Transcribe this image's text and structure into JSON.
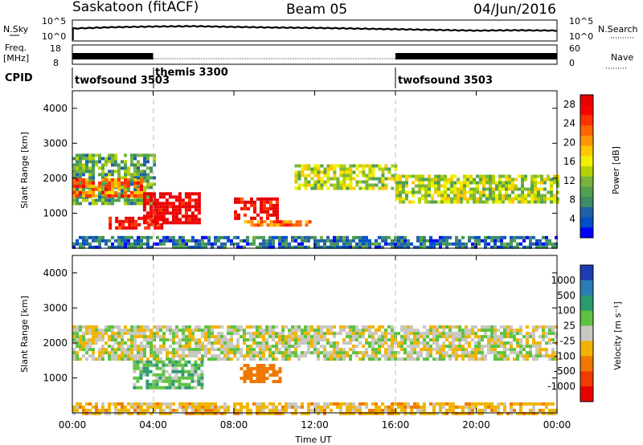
{
  "header": {
    "station": "Saskatoon (fitACF)",
    "beam": "Beam 05",
    "date": "04/Jun/2016"
  },
  "panels": {
    "nsky_label": "N.Sky",
    "nsky_ticks": [
      "10^5",
      "10^0"
    ],
    "nsearch_label": "N.Search",
    "nsearch_ticks": [
      "10^5",
      "10^0"
    ],
    "freq_label_line1": "Freq.",
    "freq_label_line2": "[MHz]",
    "freq_ticks": [
      "18",
      "8"
    ],
    "nave_label": "Nave",
    "nave_ticks": [
      "60",
      "0"
    ],
    "cpid_label": "CPID",
    "cpid_segments": [
      {
        "name": "twofsound 3503",
        "start_hour": 0,
        "end_hour": 4
      },
      {
        "name": "themis 3300",
        "start_hour": 4,
        "end_hour": 16
      },
      {
        "name": "twofsound 3503",
        "start_hour": 16,
        "end_hour": 24
      }
    ]
  },
  "axes": {
    "xlabel": "Time UT",
    "x_ticks": [
      "00:00",
      "04:00",
      "08:00",
      "12:00",
      "16:00",
      "20:00",
      "00:00"
    ],
    "ylabel": "Slant Range [km]",
    "y_ticks": [
      "1000",
      "2000",
      "3000",
      "4000"
    ]
  },
  "colorbars": {
    "power": {
      "label": "Power [dB]",
      "ticks": [
        "4",
        "8",
        "12",
        "16",
        "20",
        "24",
        "28"
      ],
      "colors": [
        "#0000ff",
        "#0050c8",
        "#2060a8",
        "#3c8c64",
        "#50a050",
        "#78b43c",
        "#b4d200",
        "#f0f000",
        "#ffc800",
        "#ff9600",
        "#ff6400",
        "#ff3200",
        "#ff0000",
        "#e60000"
      ]
    },
    "velocity": {
      "label": "Velocity [m s⁻¹]",
      "ticks": [
        "1000",
        "500",
        "100",
        "25",
        "-25",
        "-100",
        "-500",
        "-1000"
      ],
      "colors": [
        "#1c3cb4",
        "#2b7bb4",
        "#2b9a6e",
        "#5fc142",
        "#c8c8c0",
        "#f0b400",
        "#f07800",
        "#f03c00",
        "#e60000"
      ]
    }
  },
  "chart_data": [
    {
      "type": "line",
      "name": "N.Sky / N.Search",
      "x": [
        0,
        2,
        4,
        6,
        8,
        10,
        12,
        14,
        16,
        18,
        20,
        22,
        24
      ],
      "y_log": [
        3.2,
        3.6,
        3.8,
        3.9,
        3.7,
        3.5,
        3.4,
        3.2,
        3.0,
        2.8,
        2.6,
        2.7,
        2.6
      ],
      "ylim": [
        "10^0",
        "10^5"
      ]
    },
    {
      "type": "line",
      "name": "Freq / Nave",
      "x": [
        0,
        4,
        4,
        16,
        16,
        24
      ],
      "freq_mhz": [
        10.5,
        10.5,
        10.5,
        10.5,
        10.5,
        10.5
      ],
      "ylim_freq": [
        8,
        18
      ],
      "ylim_nave": [
        0,
        60
      ]
    },
    {
      "type": "heatmap",
      "name": "Power",
      "xlim": [
        0,
        24
      ],
      "ylim": [
        0,
        4500
      ],
      "zlim": [
        0,
        30
      ],
      "bands": [
        {
          "x0": 0,
          "x1": 4,
          "y0": 1300,
          "y1": 2700,
          "z": 10
        },
        {
          "x0": 0,
          "x1": 3.5,
          "y0": 1500,
          "y1": 2000,
          "z": 22
        },
        {
          "x0": 1.8,
          "x1": 4.5,
          "y0": 600,
          "y1": 900,
          "z": 28
        },
        {
          "x0": 3.5,
          "x1": 6.3,
          "y0": 750,
          "y1": 1600,
          "z": 30
        },
        {
          "x0": 8.0,
          "x1": 10.2,
          "y0": 850,
          "y1": 1450,
          "z": 28
        },
        {
          "x0": 8.5,
          "x1": 11.7,
          "y0": 650,
          "y1": 800,
          "z": 22
        },
        {
          "x0": 11.0,
          "x1": 16.0,
          "y0": 1700,
          "y1": 2400,
          "z": 14
        },
        {
          "x0": 16.0,
          "x1": 24.0,
          "y0": 1300,
          "y1": 2100,
          "z": 14
        },
        {
          "x0": 0,
          "x1": 24,
          "y0": 0,
          "y1": 350,
          "z": 6
        }
      ]
    },
    {
      "type": "heatmap",
      "name": "Velocity",
      "xlim": [
        0,
        24
      ],
      "ylim": [
        0,
        4500
      ],
      "zlim": [
        -1000,
        1000
      ],
      "bands": [
        {
          "x0": 0,
          "x1": 24,
          "y0": 1500,
          "y1": 2500,
          "z": 0
        },
        {
          "x0": 3.0,
          "x1": 6.5,
          "y0": 700,
          "y1": 1500,
          "z": 60
        },
        {
          "x0": 8.3,
          "x1": 10.3,
          "y0": 900,
          "y1": 1400,
          "z": -300
        },
        {
          "x0": 0,
          "x1": 24,
          "y0": 0,
          "y1": 300,
          "z": -60
        }
      ]
    }
  ]
}
